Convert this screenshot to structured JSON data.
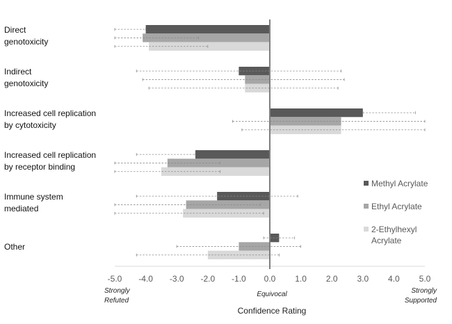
{
  "chart_data": {
    "type": "bar",
    "orientation": "horizontal",
    "title": "",
    "xlabel": "Confidence Rating",
    "ylabel": "",
    "xlim": [
      -5.0,
      5.0
    ],
    "xticks": [
      "-5.0",
      "-4.0",
      "-3.0",
      "-2.0",
      "-1.0",
      "0.0",
      "1.0",
      "2.0",
      "3.0",
      "4.0",
      "5.0"
    ],
    "annotations": {
      "left": [
        "Strongly",
        "Refuted"
      ],
      "center": "Equivocal",
      "right": [
        "Strongly",
        "Supported"
      ]
    },
    "categories": [
      [
        "Direct",
        "genotoxicity"
      ],
      [
        "Indirect",
        "genotoxicity"
      ],
      [
        "Increased cell replication",
        "by cytotoxicity"
      ],
      [
        "Increased cell replication",
        "by receptor binding"
      ],
      [
        "Immune system",
        "mediated"
      ],
      [
        "Other"
      ]
    ],
    "series": [
      {
        "name": "Methyl Acrylate",
        "legend_lines": [
          "Methyl Acrylate"
        ],
        "color": "#595959",
        "values": [
          -4.0,
          -1.0,
          3.0,
          -2.4,
          -1.7,
          0.3
        ],
        "error_low": [
          -5.0,
          -4.3,
          3.0,
          -4.3,
          -4.3,
          -0.2
        ],
        "error_high": [
          -4.0,
          2.3,
          4.7,
          -2.4,
          0.9,
          0.8
        ]
      },
      {
        "name": "Ethyl Acrylate",
        "legend_lines": [
          "Ethyl Acrylate"
        ],
        "color": "#a6a6a6",
        "values": [
          -4.1,
          -0.8,
          2.3,
          -3.3,
          -2.7,
          -1.0
        ],
        "error_low": [
          -5.0,
          -4.1,
          -1.2,
          -5.0,
          -5.0,
          -3.0
        ],
        "error_high": [
          -2.3,
          2.4,
          5.0,
          -1.6,
          -0.3,
          1.0
        ]
      },
      {
        "name": "2-Ethylhexyl Acrylate",
        "legend_lines": [
          "2-Ethylhexyl",
          "Acrylate"
        ],
        "color": "#d9d9d9",
        "values": [
          -3.9,
          -0.8,
          2.3,
          -3.5,
          -2.8,
          -2.0
        ],
        "error_low": [
          -5.0,
          -3.9,
          -0.9,
          -5.0,
          -5.0,
          -4.3
        ],
        "error_high": [
          -2.0,
          2.2,
          5.0,
          -1.6,
          -0.2,
          0.3
        ]
      }
    ],
    "grid": false,
    "legend_position": "right",
    "error_bar_style": "dashed"
  }
}
